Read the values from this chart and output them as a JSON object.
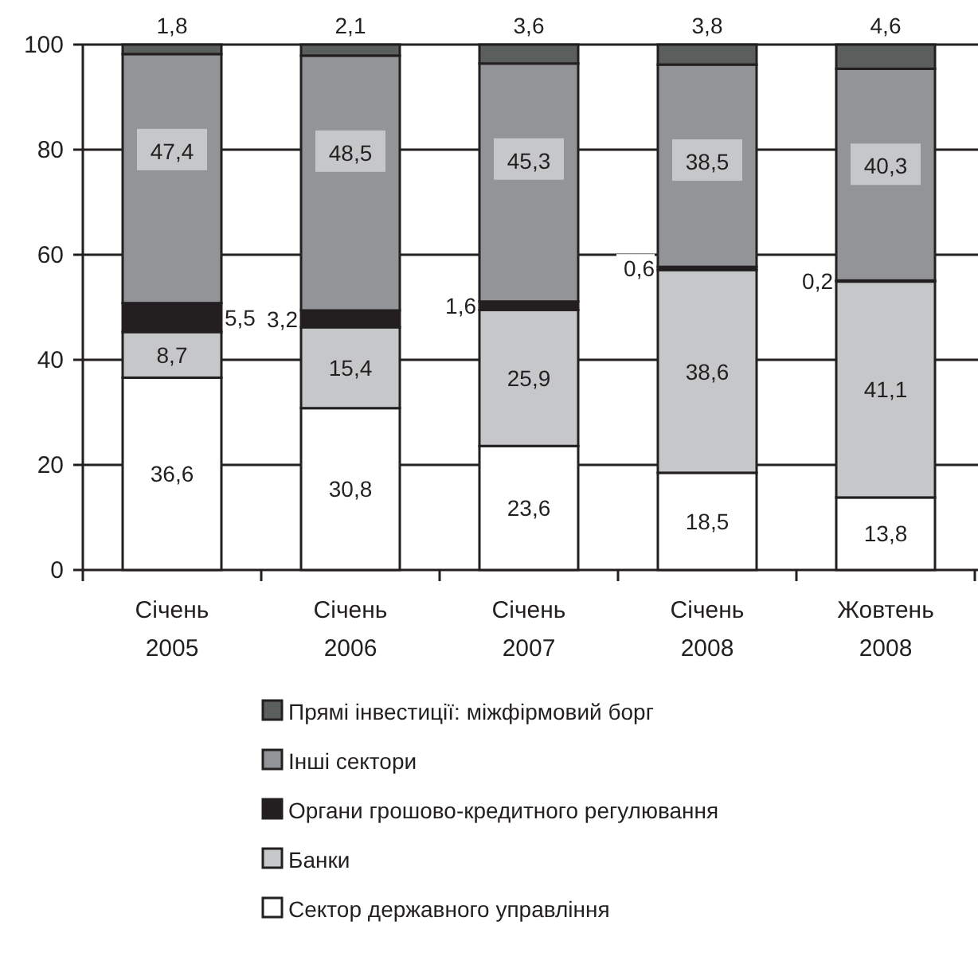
{
  "chart_data": {
    "type": "bar",
    "stacked": true,
    "categories": [
      "Січень 2005",
      "Січень 2006",
      "Січень 2007",
      "Січень 2008",
      "Жовтень 2008"
    ],
    "series": [
      {
        "name": "Сектор державного управління",
        "color": "#ffffff",
        "values": [
          36.6,
          30.8,
          23.6,
          18.5,
          13.8
        ],
        "value_labels": [
          "36,6",
          "30,8",
          "23,6",
          "18,5",
          "13,8"
        ]
      },
      {
        "name": "Банки",
        "color": "#c6c7c9",
        "values": [
          8.7,
          15.4,
          25.9,
          38.6,
          41.1
        ],
        "value_labels": [
          "8,7",
          "15,4",
          "25,9",
          "38,6",
          "41,1"
        ]
      },
      {
        "name": "Органи грошово-кредитного регулювання",
        "color": "#231f20",
        "values": [
          5.5,
          3.2,
          1.6,
          0.6,
          0.2
        ],
        "value_labels": [
          "5,5",
          "3,2",
          "1,6",
          "0,6",
          "0,2"
        ]
      },
      {
        "name": "Інші сектори",
        "color": "#939497",
        "values": [
          47.4,
          48.5,
          45.3,
          38.5,
          40.3
        ],
        "value_labels": [
          "47,4",
          "48,5",
          "45,3",
          "38,5",
          "40,3"
        ]
      },
      {
        "name": "Прямі інвестиції: міжфірмовий борг",
        "color": "#5a5f5e",
        "values": [
          1.8,
          2.1,
          3.6,
          3.8,
          4.6
        ],
        "value_labels": [
          "1,8",
          "2,1",
          "3,6",
          "3,8",
          "4,6"
        ]
      }
    ],
    "ylim": [
      0,
      100
    ],
    "yticks": [
      0,
      20,
      40,
      60,
      80,
      100
    ],
    "grid": "y",
    "legend": "bottom"
  }
}
